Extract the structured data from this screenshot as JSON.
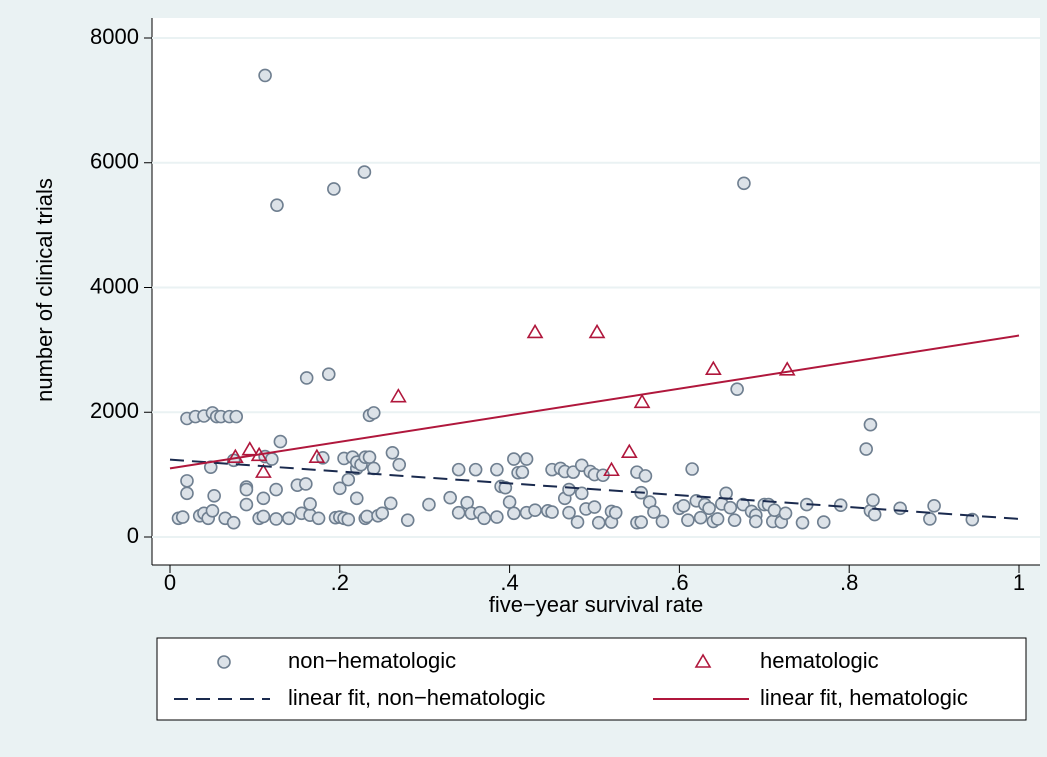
{
  "chart_data": {
    "type": "scatter",
    "xlabel": "five−year survival rate",
    "ylabel": "number of clinical trials",
    "xlim": [
      0,
      1
    ],
    "ylim": [
      0,
      8000
    ],
    "xticks": [
      0,
      {
        "value": 0.2,
        "label": ".2"
      },
      {
        "value": 0.4,
        "label": ".4"
      },
      {
        "value": 0.6,
        "label": ".6"
      },
      {
        "value": 0.8,
        "label": ".8"
      },
      1
    ],
    "yticks": [
      0,
      2000,
      4000,
      6000,
      8000
    ],
    "grid": true,
    "series": [
      {
        "name": "non−hematologic",
        "type": "scatter",
        "marker": "circle",
        "color": "#6f7f90",
        "x": [
          0.01,
          0.015,
          0.02,
          0.02,
          0.02,
          0.03,
          0.035,
          0.04,
          0.04,
          0.045,
          0.048,
          0.05,
          0.05,
          0.052,
          0.055,
          0.06,
          0.065,
          0.07,
          0.075,
          0.075,
          0.078,
          0.09,
          0.09,
          0.09,
          0.105,
          0.11,
          0.11,
          0.112,
          0.112,
          0.12,
          0.125,
          0.126,
          0.125,
          0.13,
          0.14,
          0.15,
          0.155,
          0.16,
          0.165,
          0.161,
          0.165,
          0.175,
          0.18,
          0.187,
          0.193,
          0.195,
          0.2,
          0.2,
          0.205,
          0.205,
          0.21,
          0.21,
          0.215,
          0.22,
          0.22,
          0.22,
          0.225,
          0.229,
          0.23,
          0.23,
          0.232,
          0.235,
          0.235,
          0.24,
          0.24,
          0.245,
          0.25,
          0.26,
          0.262,
          0.27,
          0.28,
          0.305,
          0.33,
          0.34,
          0.34,
          0.35,
          0.355,
          0.36,
          0.365,
          0.37,
          0.385,
          0.385,
          0.39,
          0.395,
          0.4,
          0.405,
          0.405,
          0.41,
          0.415,
          0.42,
          0.42,
          0.43,
          0.445,
          0.45,
          0.45,
          0.46,
          0.465,
          0.465,
          0.47,
          0.47,
          0.475,
          0.48,
          0.485,
          0.485,
          0.49,
          0.495,
          0.5,
          0.5,
          0.505,
          0.51,
          0.52,
          0.52,
          0.525,
          0.55,
          0.55,
          0.555,
          0.555,
          0.56,
          0.565,
          0.57,
          0.58,
          0.6,
          0.605,
          0.61,
          0.615,
          0.62,
          0.625,
          0.63,
          0.635,
          0.64,
          0.645,
          0.65,
          0.655,
          0.66,
          0.665,
          0.675,
          0.676,
          0.668,
          0.685,
          0.69,
          0.69,
          0.7,
          0.705,
          0.71,
          0.712,
          0.72,
          0.725,
          0.745,
          0.75,
          0.77,
          0.79,
          0.82,
          0.825,
          0.825,
          0.828,
          0.83,
          0.86,
          0.895,
          0.9,
          0.945
        ],
        "values": [
          300,
          320,
          700,
          900,
          1900,
          1930,
          340,
          380,
          1940,
          300,
          1120,
          1990,
          420,
          660,
          1930,
          1930,
          300,
          1930,
          230,
          1230,
          1930,
          800,
          760,
          520,
          300,
          330,
          620,
          1290,
          7400,
          1250,
          290,
          5320,
          760,
          1530,
          300,
          830,
          380,
          850,
          350,
          2550,
          530,
          300,
          1270,
          2610,
          5580,
          310,
          780,
          320,
          1260,
          300,
          920,
          280,
          1280,
          1100,
          620,
          1200,
          1160,
          5850,
          300,
          1280,
          330,
          1280,
          1950,
          1990,
          1100,
          340,
          380,
          540,
          1350,
          1160,
          270,
          520,
          630,
          390,
          1080,
          550,
          380,
          1080,
          390,
          300,
          320,
          1080,
          810,
          790,
          560,
          380,
          1250,
          1030,
          1040,
          1250,
          390,
          430,
          420,
          1080,
          400,
          1100,
          620,
          1050,
          760,
          390,
          1040,
          240,
          700,
          1150,
          450,
          1050,
          1000,
          480,
          230,
          990,
          410,
          240,
          390,
          1040,
          230,
          710,
          240,
          980,
          560,
          400,
          250,
          460,
          500,
          270,
          1090,
          580,
          310,
          520,
          460,
          250,
          290,
          530,
          700,
          470,
          270,
          520,
          5670,
          2370,
          410,
          350,
          250,
          520,
          520,
          250,
          430,
          240,
          380,
          230,
          520,
          240,
          510,
          1410,
          1800,
          420,
          590,
          360,
          460,
          290,
          500,
          280
        ]
      },
      {
        "name": "hematologic",
        "type": "scatter",
        "marker": "triangle",
        "color": "#b0173c",
        "x": [
          0.077,
          0.094,
          0.105,
          0.11,
          0.173,
          0.269,
          0.43,
          0.503,
          0.52,
          0.541,
          0.556,
          0.64,
          0.727
        ],
        "values": [
          1280,
          1400,
          1310,
          1040,
          1280,
          2250,
          3280,
          3280,
          1070,
          1360,
          2160,
          2690,
          2680
        ]
      },
      {
        "name": "linear fit, non−hematologic",
        "type": "line",
        "dash": true,
        "color": "#1a2a4e",
        "x": [
          0,
          1
        ],
        "values": [
          1240,
          290
        ]
      },
      {
        "name": "linear fit, hematologic",
        "type": "line",
        "dash": false,
        "color": "#b0173c",
        "x": [
          0,
          1
        ],
        "values": [
          1100,
          3230
        ]
      }
    ]
  }
}
